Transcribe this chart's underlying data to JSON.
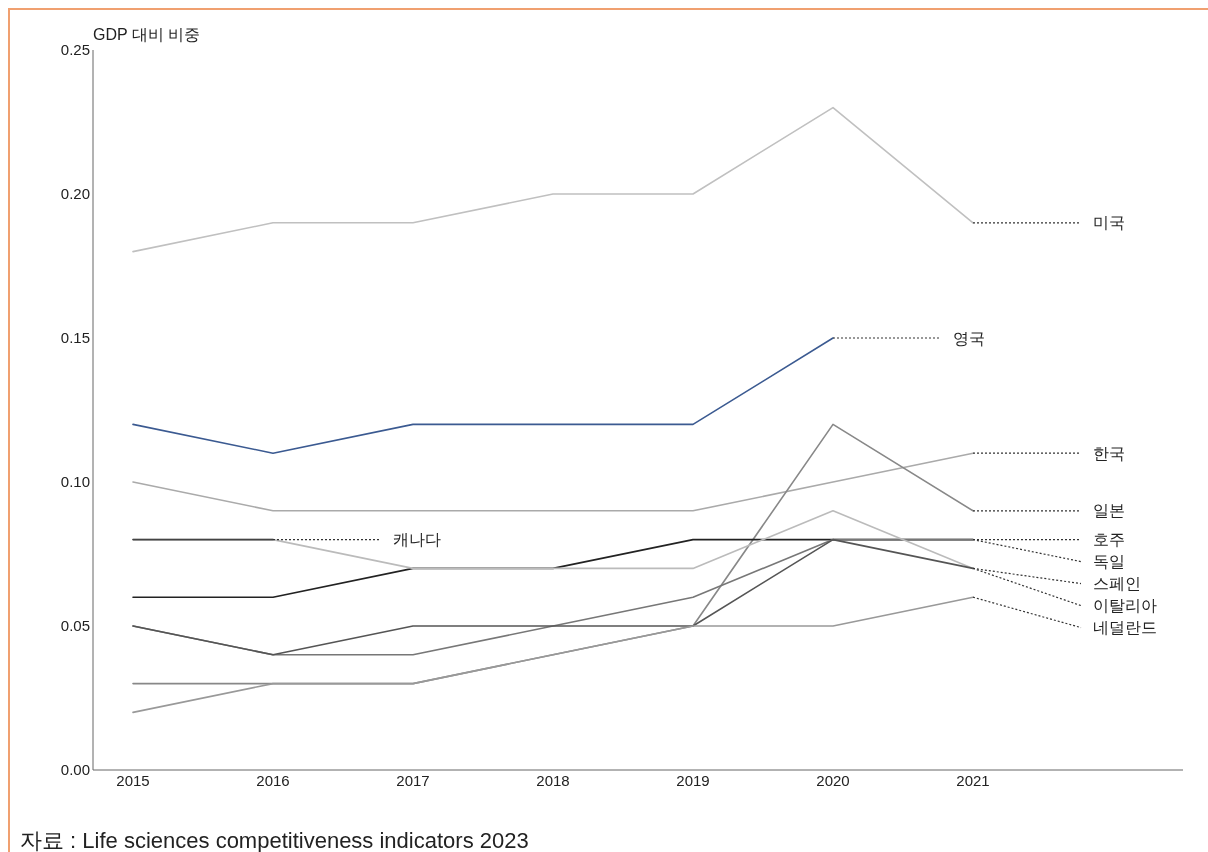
{
  "chart_data": {
    "type": "line",
    "ylabel": "GDP 대비 비중",
    "categories": [
      "2015",
      "2016",
      "2017",
      "2018",
      "2019",
      "2020",
      "2021"
    ],
    "ylim": [
      0,
      0.25
    ],
    "yticks": [
      {
        "value": 0,
        "label": "0.00"
      },
      {
        "value": 0.05,
        "label": "0.05"
      },
      {
        "value": 0.1,
        "label": "0.10"
      },
      {
        "value": 0.15,
        "label": "0.15"
      },
      {
        "value": 0.2,
        "label": "0.20"
      },
      {
        "value": 0.25,
        "label": "0.25"
      }
    ],
    "grid": false,
    "marker": "none",
    "line_style": "solid",
    "series": [
      {
        "name": "미국",
        "color": "#c0c0c0",
        "values": [
          0.18,
          0.19,
          0.19,
          0.2,
          0.2,
          0.23,
          0.19
        ]
      },
      {
        "name": "영국",
        "color": "#3b5a91",
        "values": [
          0.12,
          0.11,
          0.12,
          0.12,
          0.12,
          0.15,
          null
        ]
      },
      {
        "name": "한국",
        "color": "#aaaaaa",
        "values": [
          0.1,
          0.09,
          0.09,
          0.09,
          0.09,
          0.1,
          0.11
        ]
      },
      {
        "name": "일본",
        "color": "#888888",
        "values": [
          0.03,
          0.03,
          0.03,
          0.04,
          0.05,
          0.12,
          0.09
        ]
      },
      {
        "name": "호주",
        "color": "#222222",
        "values": [
          0.06,
          0.06,
          0.07,
          0.07,
          0.08,
          0.08,
          0.08
        ]
      },
      {
        "name": "독일",
        "color": "#777777",
        "values": [
          0.05,
          0.04,
          0.04,
          0.05,
          0.06,
          0.08,
          0.08
        ]
      },
      {
        "name": "스페인",
        "color": "#bbbbbb",
        "values": [
          0.08,
          0.08,
          0.07,
          0.07,
          0.07,
          0.09,
          0.07
        ]
      },
      {
        "name": "이탈리아",
        "color": "#555555",
        "values": [
          0.05,
          0.04,
          0.05,
          0.05,
          0.05,
          0.08,
          0.07
        ]
      },
      {
        "name": "네덜란드",
        "color": "#999999",
        "values": [
          0.02,
          0.03,
          0.03,
          0.04,
          0.05,
          0.05,
          0.06
        ]
      },
      {
        "name": "캐나다",
        "color": "#444444",
        "values": [
          0.08,
          0.08,
          null,
          null,
          null,
          null,
          null
        ]
      }
    ],
    "annotations": [
      "자료 : Life sciences competitiveness indicators 2023"
    ]
  }
}
